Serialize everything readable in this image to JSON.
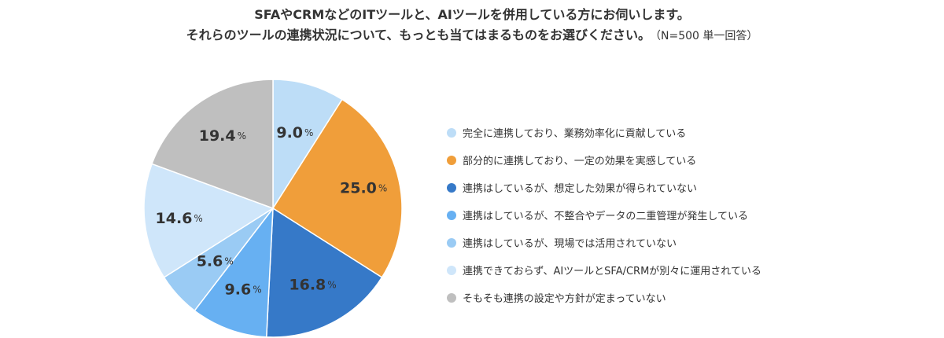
{
  "title": {
    "line1": "SFAやCRMなどのITツールと、AIツールを併用している方にお伺いします。",
    "line2": "それらのツールの連携状況について、もっとも当てはまるものをお選びください。",
    "note": "（N=500 単一回答）"
  },
  "chart_data": {
    "type": "pie",
    "unit": "%",
    "slices": [
      {
        "label": "完全に連携しており、業務効率化に貢献している",
        "value": 9.0,
        "display": "9.0",
        "color": "#bdddf7"
      },
      {
        "label": "部分的に連携しており、一定の効果を実感している",
        "value": 25.0,
        "display": "25.0",
        "color": "#f09e3a"
      },
      {
        "label": "連携はしているが、想定した効果が得られていない",
        "value": 16.8,
        "display": "16.8",
        "color": "#3679c8"
      },
      {
        "label": "連携はしているが、不整合やデータの二重管理が発生している",
        "value": 9.6,
        "display": "9.6",
        "color": "#67b0f2"
      },
      {
        "label": "連携はしているが、現場では活用されていない",
        "value": 5.6,
        "display": "5.6",
        "color": "#9acbf4"
      },
      {
        "label": "連携できておらず、AIツールとSFA/CRMが別々に運用されている",
        "value": 14.6,
        "display": "14.6",
        "color": "#cfe6fa"
      },
      {
        "label": "そもそも連携の設定や方針が定まっていない",
        "value": 19.4,
        "display": "19.4",
        "color": "#bfbfbf"
      }
    ],
    "legend_position": "right"
  }
}
